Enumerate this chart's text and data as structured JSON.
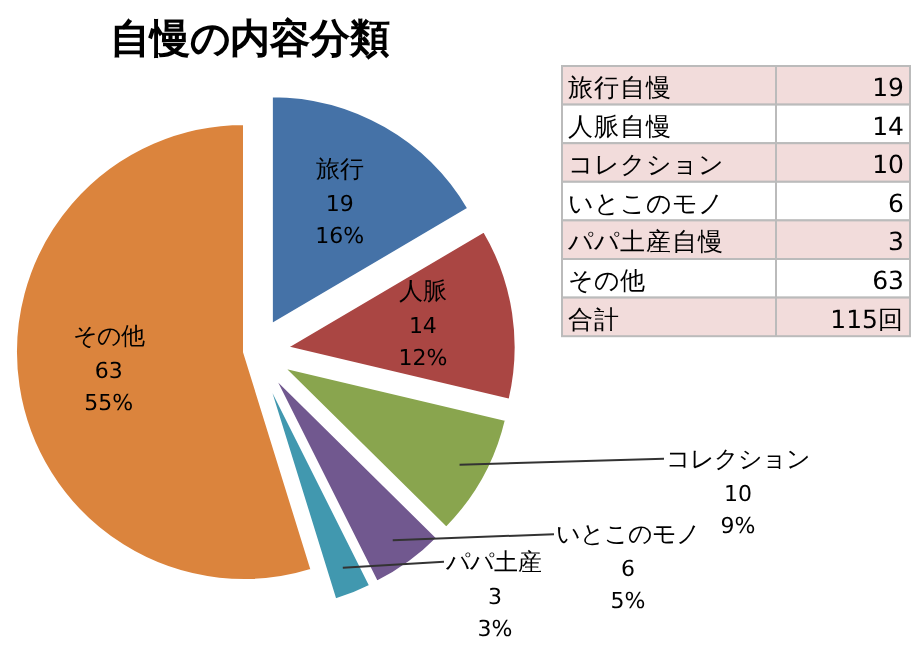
{
  "chart_data": {
    "type": "pie",
    "title": "自慢の内容分類",
    "categories": [
      "旅行",
      "人脈",
      "コレクション",
      "いとこのモノ",
      "パパ土産",
      "その他"
    ],
    "values": [
      19,
      14,
      10,
      6,
      3,
      63
    ],
    "colors": [
      "#4572a7",
      "#aa4643",
      "#89a54e",
      "#71588f",
      "#4198af",
      "#db843d"
    ],
    "value_labels": [
      "19\n16%",
      "14\n12%",
      "10\n9%",
      "6\n5%",
      "3\n3%",
      "63\n55%"
    ],
    "annotations": [
      "旅行自慢",
      "19",
      "人脈自慢",
      "14",
      "コレクション",
      "10",
      "いとこのモノ",
      "6",
      "パパ土産自慢",
      "3",
      "その他",
      "63",
      "合計",
      "115回"
    ]
  }
}
